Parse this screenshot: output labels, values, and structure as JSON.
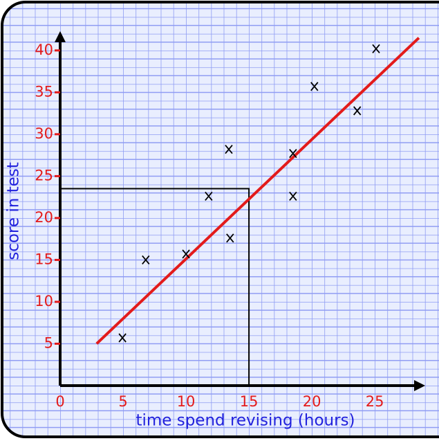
{
  "chart_data": {
    "type": "scatter",
    "x_label": "time spend revising (hours)",
    "y_label": "score in test",
    "series": [
      {
        "name": "x",
        "color": "#000000",
        "x": [
          4.95,
          6.8,
          10,
          11.8,
          13.4,
          13.5,
          18.5,
          18.5,
          20.2,
          23.6,
          25.1
        ],
        "values": [
          5.7,
          15,
          15.7,
          22.6,
          28.2,
          17.6,
          27.7,
          22.6,
          35.7,
          32.8,
          40.2
        ]
      }
    ],
    "trend_line": {
      "color": "#e31b1b",
      "x": [
        2.9,
        28.5
      ],
      "values": [
        5,
        41.5
      ]
    },
    "reading": {
      "x": 15,
      "y": 23.5
    },
    "xlim": [
      0,
      29
    ],
    "ylim": [
      0,
      42.3
    ],
    "xticks": [
      0,
      5,
      10,
      15,
      20,
      25
    ],
    "yticks": [
      5,
      10,
      15,
      20,
      25,
      30,
      35,
      40
    ],
    "tick_color": "#e31b1b",
    "label_color": "#2222dd",
    "grid": true
  }
}
